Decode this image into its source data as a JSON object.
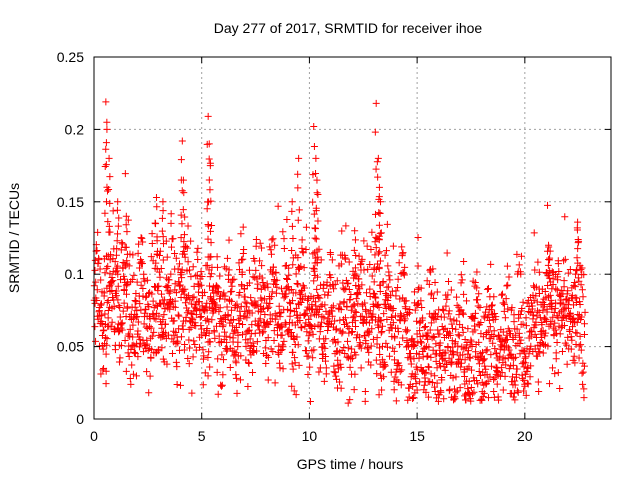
{
  "chart_data": {
    "type": "scatter",
    "title": "Day 277 of 2017, SRMTID for receiver ihoe",
    "xlabel": "GPS time / hours",
    "ylabel": "SRMTID / TECUs",
    "xlim": [
      0,
      24
    ],
    "ylim": [
      0,
      0.25
    ],
    "xticks": [
      0,
      5,
      10,
      15,
      20
    ],
    "xtick_labels": [
      "0",
      "5",
      "10",
      "15",
      "20"
    ],
    "yticks": [
      0,
      0.05,
      0.1,
      0.15,
      0.2,
      0.25
    ],
    "ytick_labels": [
      "0",
      "0.05",
      "0.1",
      "0.15",
      "0.2",
      "0.25"
    ],
    "grid": true,
    "marker": "+",
    "color": "#ff0000",
    "time_range_hours": [
      0.0,
      22.8
    ],
    "points_estimated_count": 2200,
    "baseline_profile": [
      {
        "x": 0.0,
        "y": 0.075
      },
      {
        "x": 1.0,
        "y": 0.085
      },
      {
        "x": 2.0,
        "y": 0.065
      },
      {
        "x": 3.0,
        "y": 0.08
      },
      {
        "x": 4.0,
        "y": 0.085
      },
      {
        "x": 5.0,
        "y": 0.07
      },
      {
        "x": 6.0,
        "y": 0.07
      },
      {
        "x": 7.0,
        "y": 0.075
      },
      {
        "x": 8.0,
        "y": 0.075
      },
      {
        "x": 9.0,
        "y": 0.08
      },
      {
        "x": 10.0,
        "y": 0.075
      },
      {
        "x": 11.0,
        "y": 0.07
      },
      {
        "x": 12.0,
        "y": 0.065
      },
      {
        "x": 13.0,
        "y": 0.075
      },
      {
        "x": 14.0,
        "y": 0.065
      },
      {
        "x": 15.0,
        "y": 0.055
      },
      {
        "x": 16.0,
        "y": 0.05
      },
      {
        "x": 17.0,
        "y": 0.05
      },
      {
        "x": 18.0,
        "y": 0.055
      },
      {
        "x": 19.0,
        "y": 0.05
      },
      {
        "x": 20.0,
        "y": 0.06
      },
      {
        "x": 21.0,
        "y": 0.07
      },
      {
        "x": 22.0,
        "y": 0.075
      },
      {
        "x": 22.8,
        "y": 0.07
      }
    ],
    "spread": 0.022,
    "peaks": [
      {
        "x": 0.55,
        "y": 0.219
      },
      {
        "x": 0.6,
        "y": 0.2
      },
      {
        "x": 0.7,
        "y": 0.18
      },
      {
        "x": 1.1,
        "y": 0.15
      },
      {
        "x": 1.5,
        "y": 0.14
      },
      {
        "x": 2.9,
        "y": 0.153
      },
      {
        "x": 3.2,
        "y": 0.15
      },
      {
        "x": 4.1,
        "y": 0.192
      },
      {
        "x": 4.15,
        "y": 0.165
      },
      {
        "x": 5.3,
        "y": 0.209
      },
      {
        "x": 5.35,
        "y": 0.19
      },
      {
        "x": 5.4,
        "y": 0.175
      },
      {
        "x": 9.2,
        "y": 0.15
      },
      {
        "x": 9.5,
        "y": 0.18
      },
      {
        "x": 10.2,
        "y": 0.202
      },
      {
        "x": 10.3,
        "y": 0.18
      },
      {
        "x": 10.35,
        "y": 0.165
      },
      {
        "x": 13.1,
        "y": 0.218
      },
      {
        "x": 13.2,
        "y": 0.18
      },
      {
        "x": 13.25,
        "y": 0.16
      },
      {
        "x": 13.3,
        "y": 0.15
      },
      {
        "x": 22.45,
        "y": 0.136
      },
      {
        "x": 21.1,
        "y": 0.12
      },
      {
        "x": 12.1,
        "y": 0.13
      }
    ],
    "lows": [
      {
        "x": 11.8,
        "y": 0.011
      },
      {
        "x": 16.6,
        "y": 0.015
      },
      {
        "x": 17.2,
        "y": 0.016
      },
      {
        "x": 19.0,
        "y": 0.02
      },
      {
        "x": 15.0,
        "y": 0.02
      },
      {
        "x": 6.8,
        "y": 0.027
      }
    ]
  }
}
